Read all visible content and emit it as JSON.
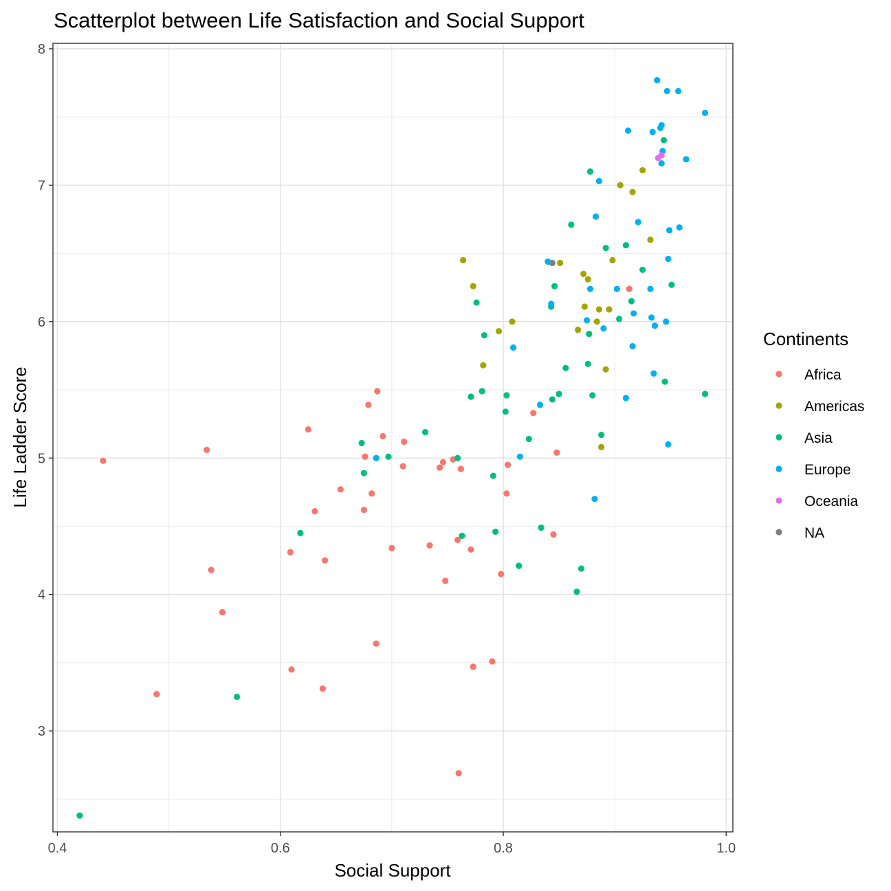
{
  "chart_data": {
    "type": "scatter",
    "title": "Scatterplot between Life Satisfaction and Social Support",
    "xlabel": "Social Support",
    "ylabel": "Life Ladder Score",
    "xlim": [
      0.396,
      1.006
    ],
    "ylim": [
      2.26,
      8.04
    ],
    "x_ticks": [
      "0.4",
      "0.6",
      "0.8",
      "1.0"
    ],
    "y_ticks": [
      "3",
      "4",
      "5",
      "6",
      "7",
      "8"
    ],
    "grid": true,
    "legend": {
      "title": "Continents",
      "placement": "right"
    },
    "series": [
      {
        "name": "Africa",
        "color": "#F8766D",
        "points": [
          [
            0.441,
            4.98
          ],
          [
            0.489,
            3.27
          ],
          [
            0.534,
            5.06
          ],
          [
            0.538,
            4.18
          ],
          [
            0.548,
            3.87
          ],
          [
            0.609,
            4.31
          ],
          [
            0.61,
            3.45
          ],
          [
            0.625,
            5.21
          ],
          [
            0.631,
            4.61
          ],
          [
            0.638,
            3.31
          ],
          [
            0.64,
            4.25
          ],
          [
            0.654,
            4.77
          ],
          [
            0.675,
            4.62
          ],
          [
            0.676,
            5.01
          ],
          [
            0.679,
            5.39
          ],
          [
            0.682,
            4.74
          ],
          [
            0.686,
            3.64
          ],
          [
            0.687,
            5.49
          ],
          [
            0.692,
            5.16
          ],
          [
            0.7,
            4.34
          ],
          [
            0.71,
            4.94
          ],
          [
            0.711,
            5.12
          ],
          [
            0.734,
            4.36
          ],
          [
            0.743,
            4.93
          ],
          [
            0.746,
            4.97
          ],
          [
            0.748,
            4.1
          ],
          [
            0.755,
            4.99
          ],
          [
            0.759,
            4.4
          ],
          [
            0.76,
            2.69
          ],
          [
            0.762,
            4.92
          ],
          [
            0.771,
            4.33
          ],
          [
            0.773,
            3.47
          ],
          [
            0.79,
            3.51
          ],
          [
            0.798,
            4.15
          ],
          [
            0.803,
            4.74
          ],
          [
            0.804,
            4.95
          ],
          [
            0.827,
            5.33
          ],
          [
            0.845,
            4.44
          ],
          [
            0.848,
            5.04
          ],
          [
            0.913,
            6.24
          ]
        ]
      },
      {
        "name": "Americas",
        "color": "#A3A500",
        "points": [
          [
            0.764,
            6.45
          ],
          [
            0.773,
            6.26
          ],
          [
            0.782,
            5.68
          ],
          [
            0.796,
            5.93
          ],
          [
            0.808,
            6.0
          ],
          [
            0.851,
            6.43
          ],
          [
            0.867,
            5.94
          ],
          [
            0.872,
            6.35
          ],
          [
            0.873,
            6.11
          ],
          [
            0.876,
            6.31
          ],
          [
            0.884,
            6.0
          ],
          [
            0.886,
            6.09
          ],
          [
            0.888,
            5.08
          ],
          [
            0.892,
            5.65
          ],
          [
            0.895,
            6.09
          ],
          [
            0.898,
            6.45
          ],
          [
            0.905,
            7.0
          ],
          [
            0.916,
            6.95
          ],
          [
            0.925,
            7.11
          ],
          [
            0.932,
            6.6
          ]
        ]
      },
      {
        "name": "Asia",
        "color": "#00BF7D",
        "points": [
          [
            0.42,
            2.38
          ],
          [
            0.561,
            3.25
          ],
          [
            0.618,
            4.45
          ],
          [
            0.673,
            5.11
          ],
          [
            0.675,
            4.89
          ],
          [
            0.697,
            5.01
          ],
          [
            0.73,
            5.19
          ],
          [
            0.759,
            5.0
          ],
          [
            0.763,
            4.43
          ],
          [
            0.771,
            5.45
          ],
          [
            0.776,
            6.14
          ],
          [
            0.781,
            5.49
          ],
          [
            0.783,
            5.9
          ],
          [
            0.791,
            4.87
          ],
          [
            0.793,
            4.46
          ],
          [
            0.802,
            5.34
          ],
          [
            0.803,
            5.46
          ],
          [
            0.814,
            4.21
          ],
          [
            0.823,
            5.14
          ],
          [
            0.834,
            4.49
          ],
          [
            0.843,
            6.11
          ],
          [
            0.844,
            5.43
          ],
          [
            0.846,
            6.26
          ],
          [
            0.85,
            5.47
          ],
          [
            0.856,
            5.66
          ],
          [
            0.861,
            6.71
          ],
          [
            0.866,
            4.02
          ],
          [
            0.87,
            4.19
          ],
          [
            0.876,
            5.69
          ],
          [
            0.877,
            5.91
          ],
          [
            0.878,
            7.1
          ],
          [
            0.88,
            5.46
          ],
          [
            0.888,
            5.17
          ],
          [
            0.892,
            6.54
          ],
          [
            0.904,
            6.02
          ],
          [
            0.91,
            6.56
          ],
          [
            0.915,
            6.15
          ],
          [
            0.925,
            6.38
          ],
          [
            0.944,
            7.33
          ],
          [
            0.945,
            5.56
          ],
          [
            0.951,
            6.27
          ],
          [
            0.981,
            5.47
          ]
        ]
      },
      {
        "name": "Europe",
        "color": "#00B0F6",
        "points": [
          [
            0.686,
            5.0
          ],
          [
            0.809,
            5.81
          ],
          [
            0.815,
            5.01
          ],
          [
            0.833,
            5.39
          ],
          [
            0.84,
            6.44
          ],
          [
            0.843,
            6.13
          ],
          [
            0.875,
            6.01
          ],
          [
            0.878,
            6.24
          ],
          [
            0.882,
            4.7
          ],
          [
            0.883,
            6.77
          ],
          [
            0.886,
            7.03
          ],
          [
            0.89,
            5.95
          ],
          [
            0.902,
            6.24
          ],
          [
            0.91,
            5.44
          ],
          [
            0.912,
            7.4
          ],
          [
            0.916,
            5.82
          ],
          [
            0.917,
            6.06
          ],
          [
            0.921,
            6.73
          ],
          [
            0.932,
            6.24
          ],
          [
            0.933,
            6.03
          ],
          [
            0.934,
            7.39
          ],
          [
            0.935,
            5.62
          ],
          [
            0.936,
            5.97
          ],
          [
            0.938,
            7.77
          ],
          [
            0.941,
            7.42
          ],
          [
            0.942,
            7.44
          ],
          [
            0.942,
            7.16
          ],
          [
            0.943,
            7.25
          ],
          [
            0.946,
            6.0
          ],
          [
            0.947,
            7.69
          ],
          [
            0.948,
            5.1
          ],
          [
            0.948,
            6.46
          ],
          [
            0.949,
            6.67
          ],
          [
            0.957,
            7.69
          ],
          [
            0.958,
            6.69
          ],
          [
            0.964,
            7.19
          ],
          [
            0.981,
            7.53
          ]
        ]
      },
      {
        "name": "Oceania",
        "color": "#E76BF3",
        "points": [
          [
            0.939,
            7.2
          ],
          [
            0.942,
            7.22
          ]
        ]
      },
      {
        "name": "NA",
        "color": "#7F7F7F",
        "points": [
          [
            0.844,
            6.43
          ]
        ]
      }
    ]
  }
}
